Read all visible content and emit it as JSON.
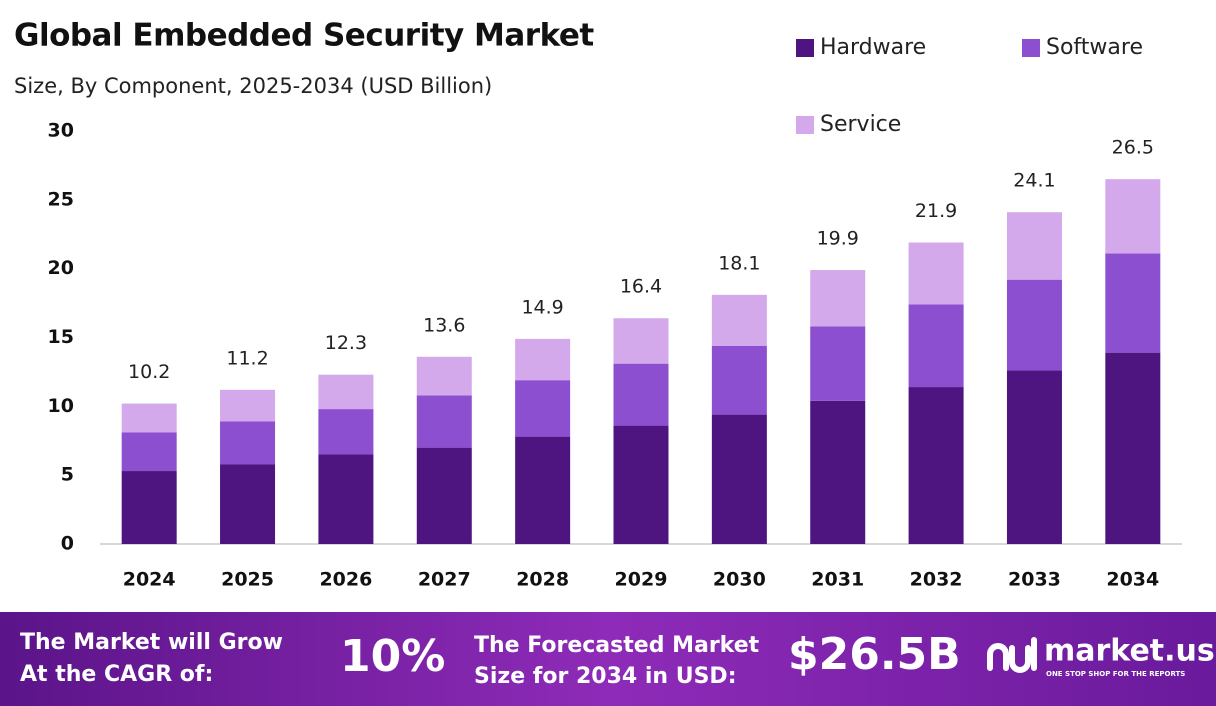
{
  "chart_data": {
    "type": "stacked-bar",
    "title": "Global Embedded Security Market",
    "subtitle": "Size, By Component, 2025-2034 (USD Billion)",
    "categories": [
      "2024",
      "2025",
      "2026",
      "2027",
      "2028",
      "2029",
      "2030",
      "2031",
      "2032",
      "2033",
      "2034"
    ],
    "series": [
      {
        "name": "Hardware",
        "color": "#4e1580",
        "values": [
          5.3,
          5.8,
          6.5,
          7.0,
          7.8,
          8.6,
          9.4,
          10.4,
          11.4,
          12.6,
          13.9
        ]
      },
      {
        "name": "Software",
        "color": "#8b4fcf",
        "values": [
          2.8,
          3.1,
          3.3,
          3.8,
          4.1,
          4.5,
          5.0,
          5.4,
          6.0,
          6.6,
          7.2
        ]
      },
      {
        "name": "Service",
        "color": "#d3a9ec",
        "values": [
          2.1,
          2.3,
          2.5,
          2.8,
          3.0,
          3.3,
          3.7,
          4.1,
          4.5,
          4.9,
          5.4
        ]
      }
    ],
    "totals": [
      10.2,
      11.2,
      12.3,
      13.6,
      14.9,
      16.4,
      18.1,
      19.9,
      21.9,
      24.1,
      26.5
    ],
    "ylim": [
      0,
      30
    ],
    "yticks": [
      0,
      5,
      10,
      15,
      20,
      25,
      30
    ],
    "grid": false,
    "legend": "top-right"
  },
  "footer": {
    "cagr_text": [
      "The Market will Grow",
      "At the CAGR of:"
    ],
    "cagr_value": "10%",
    "forecast_text": [
      "The Forecasted Market",
      "Size for 2034 in USD:"
    ],
    "forecast_value": "$26.5B",
    "brand": "market.us",
    "tagline": "ONE STOP SHOP FOR THE REPORTS"
  }
}
